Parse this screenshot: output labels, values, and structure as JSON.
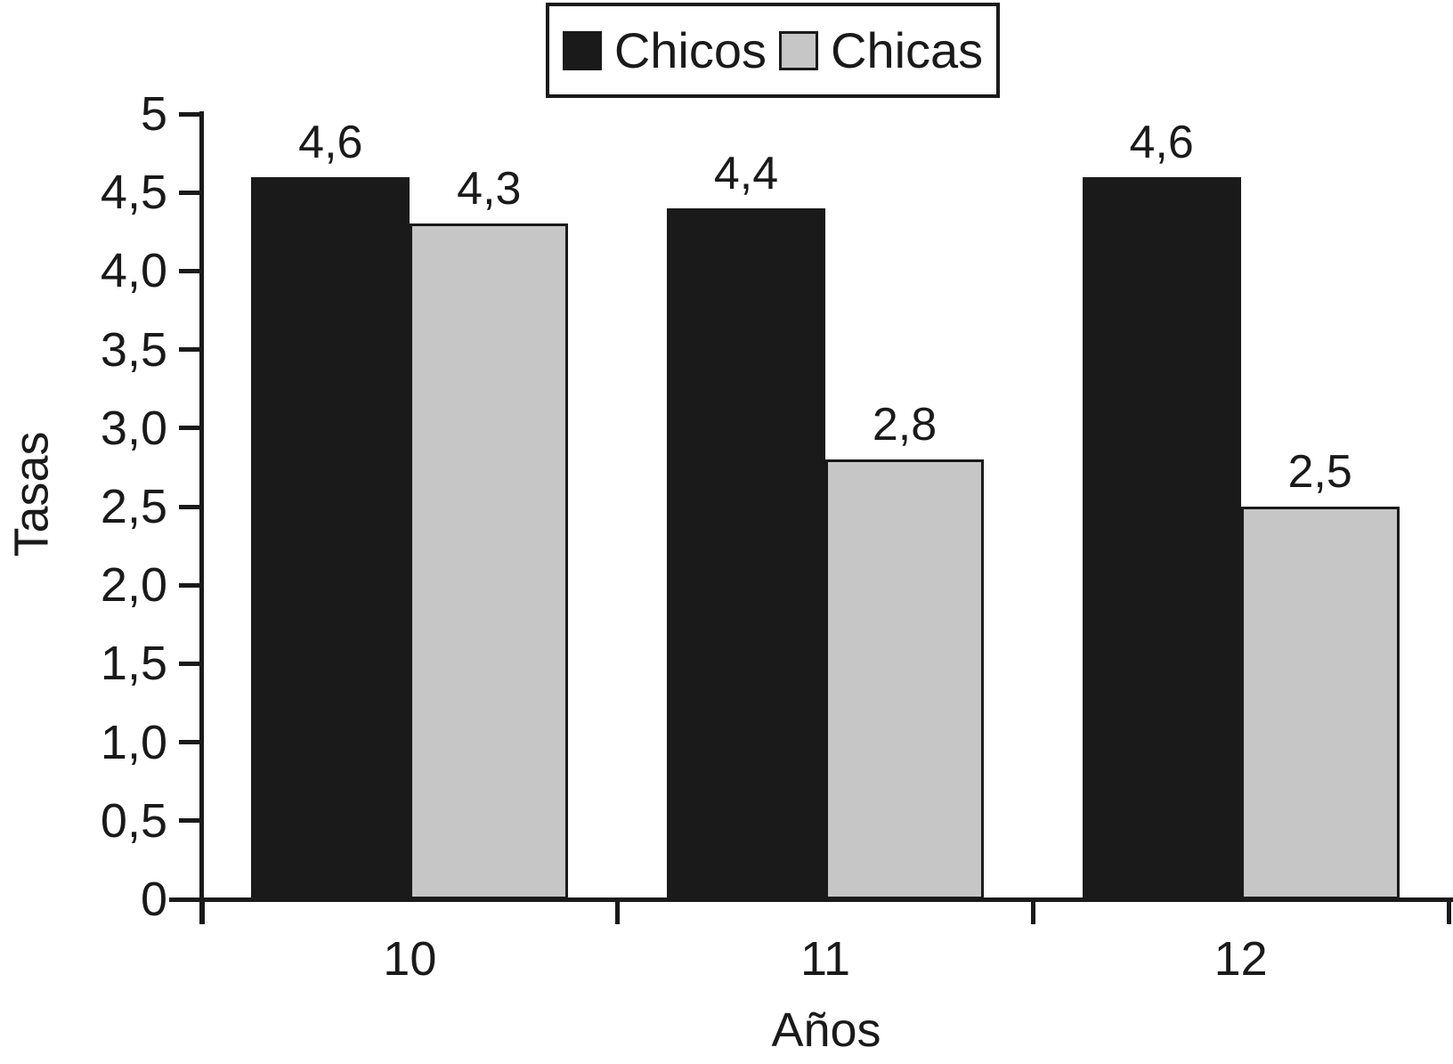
{
  "chart_data": {
    "type": "bar",
    "title": "",
    "xlabel": "Años",
    "ylabel": "Tasas",
    "categories": [
      "10",
      "11",
      "12"
    ],
    "series": [
      {
        "name": "Chicos",
        "color": "#1a1a1a",
        "values": [
          4.6,
          4.4,
          4.6
        ],
        "labels": [
          "4,6",
          "4,4",
          "4,6"
        ]
      },
      {
        "name": "Chicas",
        "color": "#c6c6c6",
        "values": [
          4.3,
          2.8,
          2.5
        ],
        "labels": [
          "4,3",
          "2,8",
          "2,5"
        ]
      }
    ],
    "ylim": [
      0,
      5
    ],
    "yticks": {
      "values": [
        0,
        0.5,
        1,
        1.5,
        2,
        2.5,
        3,
        3.5,
        4,
        4.5,
        5
      ],
      "labels": [
        "0",
        "0,5",
        "1,0",
        "1,5",
        "2,0",
        "2,5",
        "3,0",
        "3,5",
        "4,0",
        "4,5",
        "5"
      ]
    },
    "grid": false,
    "legend_position": "top-center",
    "bar_value_labels_shown": true,
    "decimal_separator": ",",
    "text_color": "#1a1a1a",
    "background_color": "#ffffff"
  }
}
